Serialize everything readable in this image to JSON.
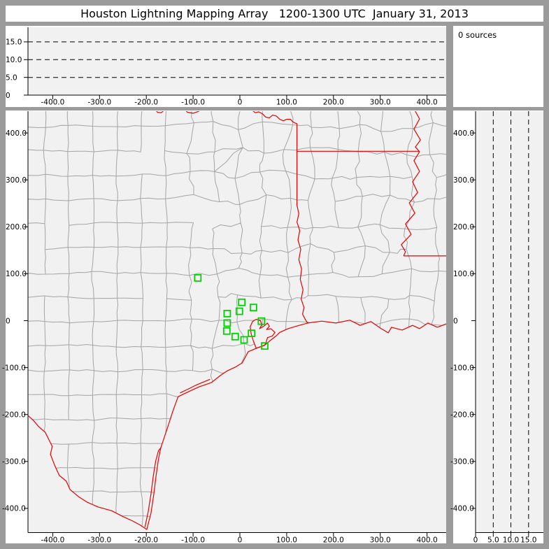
{
  "title": "Houston Lightning Mapping Array   1200-1300 UTC  January 31, 2013",
  "sources_panel": {
    "label": "0 sources"
  },
  "colors": {
    "frame": "#9b9b9b",
    "panel_bg": "#ffffff",
    "plot_bg": "#f1f1f1",
    "county": "#a4a4a4",
    "state_border": "#e60000",
    "station": "#00d400",
    "axis": "#000000"
  },
  "alt_ew_panel": {
    "x_range_km": [
      -450,
      441
    ],
    "y_range_km": [
      0,
      19
    ],
    "x_ticks": [
      -400,
      -300,
      -200,
      -100,
      0,
      100,
      200,
      300,
      400
    ],
    "x_tick_labels": [
      "-400.0",
      "-300.0",
      "-200.0",
      "-100.0",
      "0",
      "100.0",
      "200.0",
      "300.0",
      "400.0"
    ],
    "y_ticks": [
      0,
      5,
      10,
      15
    ],
    "y_tick_labels": [
      "0",
      "5.0",
      "10.0",
      "15.0"
    ],
    "dashed_levels": [
      5,
      10,
      15
    ],
    "points": []
  },
  "alt_ns_panel": {
    "x_range_km": [
      0,
      19
    ],
    "y_range_km": [
      -450,
      446
    ],
    "x_ticks": [
      0,
      5,
      10,
      15
    ],
    "x_tick_labels": [
      "0",
      "5.0",
      "10.0",
      "15.0"
    ],
    "y_ticks": [
      400,
      300,
      200,
      100,
      0,
      -100,
      -200,
      -300,
      -400
    ],
    "y_tick_labels": [
      "400.0",
      "300.0",
      "200.0",
      "100.0",
      "0",
      "-100.0",
      "-200.0",
      "-300.0",
      "-400.0"
    ],
    "dashed_levels": [
      5,
      10,
      15
    ],
    "points": []
  },
  "map_panel": {
    "x_range_km": [
      -452,
      441
    ],
    "y_range_km": [
      -451,
      446
    ],
    "x_ticks": [
      -400,
      -300,
      -200,
      -100,
      0,
      100,
      200,
      300,
      400
    ],
    "x_tick_labels": [
      "-400.0",
      "-300.0",
      "-200.0",
      "-100.0",
      "0",
      "100.0",
      "200.0",
      "300.0",
      "400.0"
    ],
    "y_ticks": [
      400,
      300,
      200,
      100,
      0,
      -100,
      -200,
      -300,
      -400
    ],
    "y_tick_labels": [
      "400.0",
      "300.0",
      "200.0",
      "100.0",
      "0",
      "-100.0",
      "-200.0",
      "-300.0",
      "-400.0"
    ],
    "stations_km": [
      [
        -90,
        91
      ],
      [
        4,
        39
      ],
      [
        29,
        28
      ],
      [
        -1,
        20
      ],
      [
        -27,
        15
      ],
      [
        -27,
        -5
      ],
      [
        -28,
        -22
      ],
      [
        -10,
        -34
      ],
      [
        9,
        -41
      ],
      [
        25,
        -27
      ],
      [
        46,
        -1
      ],
      [
        53,
        -54
      ]
    ],
    "points": []
  },
  "geo": {
    "borders": {
      "rio_grande": [
        [
          -452,
          -203
        ],
        [
          -441,
          -213
        ],
        [
          -430,
          -226
        ],
        [
          -416,
          -238
        ],
        [
          -411,
          -248
        ],
        [
          -401,
          -268
        ],
        [
          -405,
          -285
        ],
        [
          -396,
          -308
        ],
        [
          -386,
          -330
        ],
        [
          -371,
          -342
        ],
        [
          -363,
          -360
        ],
        [
          -345,
          -375
        ],
        [
          -326,
          -387
        ],
        [
          -303,
          -397
        ],
        [
          -274,
          -405
        ],
        [
          -251,
          -417
        ],
        [
          -229,
          -427
        ],
        [
          -214,
          -435
        ],
        [
          -199,
          -445
        ]
      ],
      "coast": [
        [
          -199,
          -445
        ],
        [
          -190,
          -410
        ],
        [
          -184,
          -370
        ],
        [
          -179,
          -330
        ],
        [
          -174,
          -295
        ],
        [
          -169,
          -271
        ],
        [
          -154,
          -226
        ],
        [
          -142,
          -189
        ],
        [
          -132,
          -162
        ],
        [
          -109,
          -151
        ],
        [
          -87,
          -141
        ],
        [
          -61,
          -132
        ],
        [
          -42,
          -117
        ],
        [
          -27,
          -107
        ],
        [
          -8,
          -98
        ],
        [
          5,
          -90
        ],
        [
          18,
          -66
        ],
        [
          28,
          -62
        ],
        [
          40,
          -57
        ],
        [
          52,
          -53
        ],
        [
          64,
          -43
        ],
        [
          78,
          -32
        ],
        [
          85,
          -25
        ],
        [
          103,
          -17
        ],
        [
          123,
          -11
        ],
        [
          145,
          -5
        ],
        [
          175,
          -1
        ],
        [
          205,
          -5
        ],
        [
          235,
          1
        ],
        [
          257,
          -10
        ],
        [
          280,
          -2
        ],
        [
          302,
          -17
        ],
        [
          317,
          -26
        ],
        [
          324,
          -14
        ],
        [
          347,
          -20
        ],
        [
          369,
          -10
        ],
        [
          384,
          -17
        ],
        [
          402,
          -5
        ],
        [
          422,
          -14
        ],
        [
          441,
          -7
        ],
        [
          452,
          -10
        ]
      ],
      "padre_lagoon": [
        [
          -203,
          -440
        ],
        [
          -196,
          -407
        ],
        [
          -190,
          -369
        ],
        [
          -185,
          -331
        ],
        [
          -180,
          -299
        ],
        [
          -174,
          -277
        ],
        [
          -169,
          -271
        ]
      ],
      "matagorda_lagoon": [
        [
          -128,
          -154
        ],
        [
          -111,
          -146
        ],
        [
          -93,
          -137
        ],
        [
          -76,
          -130
        ],
        [
          -64,
          -125
        ]
      ],
      "red_river": [
        [
          -183,
          452
        ],
        [
          -176,
          444
        ],
        [
          -168,
          443
        ],
        [
          -160,
          450
        ],
        [
          -150,
          455
        ],
        [
          -120,
          452
        ],
        [
          -112,
          444
        ],
        [
          -100,
          442
        ],
        [
          -88,
          446
        ],
        [
          -80,
          452
        ],
        [
          -60,
          455
        ],
        [
          -40,
          452
        ],
        [
          0,
          454
        ],
        [
          25,
          449
        ],
        [
          33,
          443
        ],
        [
          40,
          445
        ],
        [
          48,
          441
        ],
        [
          55,
          434
        ],
        [
          63,
          432
        ],
        [
          70,
          438
        ],
        [
          78,
          436
        ],
        [
          85,
          429
        ],
        [
          93,
          426
        ],
        [
          100,
          429
        ],
        [
          108,
          429
        ],
        [
          113,
          424
        ],
        [
          118,
          421
        ],
        [
          122,
          420
        ]
      ],
      "tx_ar_la_line": [
        [
          122,
          420
        ],
        [
          122,
          246
        ]
      ],
      "ar_la_line": [
        [
          122,
          361
        ],
        [
          384,
          361
        ]
      ],
      "sabine_river": [
        [
          122,
          246
        ],
        [
          126,
          228
        ],
        [
          122,
          210
        ],
        [
          128,
          192
        ],
        [
          124,
          172
        ],
        [
          130,
          152
        ],
        [
          126,
          130
        ],
        [
          132,
          110
        ],
        [
          129,
          88
        ],
        [
          135,
          66
        ],
        [
          131,
          46
        ],
        [
          137,
          28
        ],
        [
          134,
          14
        ],
        [
          140,
          2
        ],
        [
          145,
          -5
        ]
      ],
      "mississippi_river": [
        [
          374,
          448
        ],
        [
          384,
          430
        ],
        [
          372,
          408
        ],
        [
          386,
          385
        ],
        [
          375,
          370
        ],
        [
          384,
          360
        ],
        [
          372,
          341
        ],
        [
          384,
          318
        ],
        [
          369,
          296
        ],
        [
          380,
          273
        ],
        [
          362,
          251
        ],
        [
          374,
          229
        ],
        [
          354,
          206
        ],
        [
          366,
          184
        ],
        [
          345,
          162
        ],
        [
          354,
          147
        ],
        [
          350,
          138
        ]
      ],
      "la_ms_line": [
        [
          350,
          138
        ],
        [
          452,
          138
        ]
      ]
    },
    "bay": [
      [
        35,
        -59
      ],
      [
        29,
        -44
      ],
      [
        24,
        -28
      ],
      [
        22,
        -13
      ],
      [
        27,
        -2
      ],
      [
        35,
        3
      ],
      [
        44,
        0
      ],
      [
        47,
        -9
      ],
      [
        42,
        -17
      ],
      [
        51,
        -12
      ],
      [
        59,
        -5
      ],
      [
        63,
        -12
      ],
      [
        57,
        -19
      ],
      [
        66,
        -17
      ],
      [
        75,
        -25
      ],
      [
        69,
        -33
      ],
      [
        59,
        -36
      ],
      [
        56,
        -46
      ],
      [
        53,
        -52
      ]
    ],
    "water": [
      {
        "base": "coast",
        "append": [
          [
            452,
            -460
          ],
          [
            -199,
            -460
          ]
        ]
      },
      {
        "base": "rio_grande",
        "append": [
          [
            -199,
            -460
          ],
          [
            -452,
            -460
          ]
        ]
      }
    ],
    "county_grid": {
      "cell_km": 52,
      "seed": 9,
      "jitter_west": 3,
      "jitter_east": 11,
      "west_of": -150,
      "skip_p_west": 0.03,
      "skip_p_east": 0.1,
      "wiggle_west": 1.5,
      "wiggle_east": 4.5,
      "diag_p": 0.05
    }
  }
}
